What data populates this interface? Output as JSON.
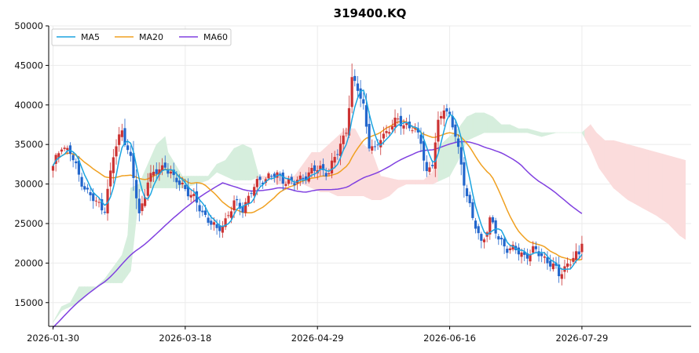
{
  "chart_data": {
    "type": "candlestick",
    "title": "319400.KQ",
    "xlabel": "",
    "ylabel": "",
    "ylim": [
      12000,
      50000
    ],
    "xlim": [
      -1.5,
      222
    ],
    "yticks": [
      15000,
      20000,
      25000,
      30000,
      35000,
      40000,
      45000,
      50000
    ],
    "xtick_labels": [
      {
        "index": 0,
        "label": "2026-01-30"
      },
      {
        "index": 46,
        "label": "2026-03-18"
      },
      {
        "index": 92,
        "label": "2026-04-29"
      },
      {
        "index": 138,
        "label": "2026-06-16"
      },
      {
        "index": 184,
        "label": "2026-07-29"
      }
    ],
    "grid": true,
    "legend": {
      "placement": "top-left",
      "entries": [
        "MA5",
        "MA20",
        "MA60"
      ]
    },
    "colors": {
      "up": "#cc3333",
      "down": "#2266cc",
      "ma5": "#1ba4e0",
      "ma20": "#f0a020",
      "ma60": "#8040e0",
      "cloud_bull": "#d6eedd",
      "cloud_bear": "#fbdcdc"
    },
    "close_keypoints": [
      [
        0,
        32000
      ],
      [
        3,
        35000
      ],
      [
        6,
        34000
      ],
      [
        9,
        31000
      ],
      [
        12,
        29000
      ],
      [
        15,
        27500
      ],
      [
        18,
        27000
      ],
      [
        21,
        33500
      ],
      [
        24,
        37000
      ],
      [
        27,
        33000
      ],
      [
        30,
        26000
      ],
      [
        33,
        30500
      ],
      [
        36,
        31500
      ],
      [
        39,
        32500
      ],
      [
        42,
        30500
      ],
      [
        45,
        30000
      ],
      [
        48,
        28500
      ],
      [
        51,
        27000
      ],
      [
        54,
        25500
      ],
      [
        57,
        24000
      ],
      [
        60,
        25500
      ],
      [
        63,
        27500
      ],
      [
        66,
        27000
      ],
      [
        69,
        29000
      ],
      [
        72,
        30500
      ],
      [
        75,
        31000
      ],
      [
        78,
        31000
      ],
      [
        81,
        30500
      ],
      [
        84,
        30000
      ],
      [
        87,
        31000
      ],
      [
        90,
        31500
      ],
      [
        93,
        32000
      ],
      [
        96,
        31500
      ],
      [
        99,
        34000
      ],
      [
        102,
        37000
      ],
      [
        104,
        43000
      ],
      [
        106,
        42000
      ],
      [
        108,
        40000
      ],
      [
        110,
        35000
      ],
      [
        112,
        34000
      ],
      [
        114,
        36000
      ],
      [
        117,
        37000
      ],
      [
        120,
        38000
      ],
      [
        123,
        37500
      ],
      [
        125,
        37000
      ],
      [
        128,
        35500
      ],
      [
        130,
        31500
      ],
      [
        132,
        32500
      ],
      [
        134,
        37500
      ],
      [
        136,
        40000
      ],
      [
        138,
        38500
      ],
      [
        140,
        36000
      ],
      [
        143,
        30500
      ],
      [
        146,
        25500
      ],
      [
        149,
        22500
      ],
      [
        152,
        25500
      ],
      [
        155,
        23000
      ],
      [
        158,
        22000
      ],
      [
        161,
        21500
      ],
      [
        164,
        21000
      ],
      [
        167,
        21500
      ],
      [
        170,
        21000
      ],
      [
        173,
        20000
      ],
      [
        176,
        18500
      ],
      [
        179,
        20000
      ],
      [
        181,
        20500
      ],
      [
        183,
        21000
      ],
      [
        184,
        23000
      ]
    ],
    "cloud_top_keypoints": [
      [
        0,
        12500
      ],
      [
        3,
        14500
      ],
      [
        6,
        15000
      ],
      [
        9,
        17000
      ],
      [
        15,
        17000
      ],
      [
        18,
        18000
      ],
      [
        24,
        21000
      ],
      [
        26,
        23500
      ],
      [
        27,
        29500
      ],
      [
        30,
        30000
      ],
      [
        33,
        32500
      ],
      [
        36,
        35000
      ],
      [
        39,
        36000
      ],
      [
        40,
        34000
      ],
      [
        45,
        31000
      ],
      [
        54,
        31000
      ],
      [
        57,
        32500
      ],
      [
        60,
        33000
      ],
      [
        63,
        34500
      ],
      [
        66,
        35000
      ],
      [
        69,
        34500
      ],
      [
        72,
        30500
      ],
      [
        78,
        31000
      ],
      [
        84,
        31000
      ],
      [
        87,
        32500
      ],
      [
        90,
        34000
      ],
      [
        93,
        34000
      ],
      [
        96,
        35000
      ],
      [
        99,
        36000
      ],
      [
        102,
        37000
      ],
      [
        105,
        37000
      ],
      [
        108,
        35000
      ],
      [
        111,
        34000
      ],
      [
        114,
        31000
      ],
      [
        120,
        30500
      ],
      [
        126,
        30500
      ],
      [
        129,
        30500
      ],
      [
        132,
        31500
      ],
      [
        135,
        35000
      ],
      [
        138,
        36000
      ],
      [
        141,
        37000
      ],
      [
        144,
        38500
      ],
      [
        147,
        39000
      ],
      [
        150,
        39000
      ],
      [
        153,
        38500
      ],
      [
        156,
        37500
      ],
      [
        159,
        37500
      ],
      [
        162,
        37000
      ],
      [
        165,
        37000
      ],
      [
        170,
        36500
      ],
      [
        180,
        36500
      ],
      [
        184,
        36500
      ],
      [
        187,
        37500
      ],
      [
        189,
        36500
      ],
      [
        192,
        35500
      ],
      [
        195,
        35500
      ],
      [
        200,
        35000
      ],
      [
        205,
        34500
      ],
      [
        210,
        34000
      ],
      [
        215,
        33500
      ],
      [
        220,
        33000
      ]
    ],
    "cloud_bottom_keypoints": [
      [
        0,
        12500
      ],
      [
        3,
        14000
      ],
      [
        6,
        14500
      ],
      [
        9,
        15000
      ],
      [
        15,
        17000
      ],
      [
        18,
        17500
      ],
      [
        24,
        17500
      ],
      [
        27,
        19000
      ],
      [
        30,
        29000
      ],
      [
        33,
        29500
      ],
      [
        36,
        29500
      ],
      [
        39,
        29500
      ],
      [
        42,
        29500
      ],
      [
        45,
        29500
      ],
      [
        50,
        30000
      ],
      [
        54,
        30500
      ],
      [
        57,
        31500
      ],
      [
        60,
        31000
      ],
      [
        63,
        30500
      ],
      [
        66,
        30500
      ],
      [
        69,
        30500
      ],
      [
        72,
        31000
      ],
      [
        75,
        31000
      ],
      [
        78,
        30000
      ],
      [
        81,
        30000
      ],
      [
        84,
        30000
      ],
      [
        87,
        30000
      ],
      [
        90,
        29500
      ],
      [
        93,
        29000
      ],
      [
        96,
        29000
      ],
      [
        99,
        28500
      ],
      [
        102,
        28500
      ],
      [
        105,
        28500
      ],
      [
        108,
        28500
      ],
      [
        111,
        28000
      ],
      [
        114,
        28000
      ],
      [
        117,
        28500
      ],
      [
        120,
        29500
      ],
      [
        123,
        30000
      ],
      [
        126,
        30000
      ],
      [
        129,
        30000
      ],
      [
        132,
        30000
      ],
      [
        135,
        30500
      ],
      [
        138,
        31000
      ],
      [
        141,
        33000
      ],
      [
        144,
        35500
      ],
      [
        147,
        36000
      ],
      [
        150,
        36500
      ],
      [
        153,
        36500
      ],
      [
        156,
        36500
      ],
      [
        159,
        36500
      ],
      [
        162,
        36500
      ],
      [
        165,
        36500
      ],
      [
        170,
        36000
      ],
      [
        175,
        36500
      ],
      [
        180,
        36500
      ],
      [
        184,
        36500
      ],
      [
        187,
        34500
      ],
      [
        190,
        32000
      ],
      [
        195,
        29500
      ],
      [
        200,
        28000
      ],
      [
        205,
        27000
      ],
      [
        210,
        26000
      ],
      [
        214,
        25000
      ],
      [
        218,
        23500
      ],
      [
        220,
        23000
      ]
    ]
  }
}
